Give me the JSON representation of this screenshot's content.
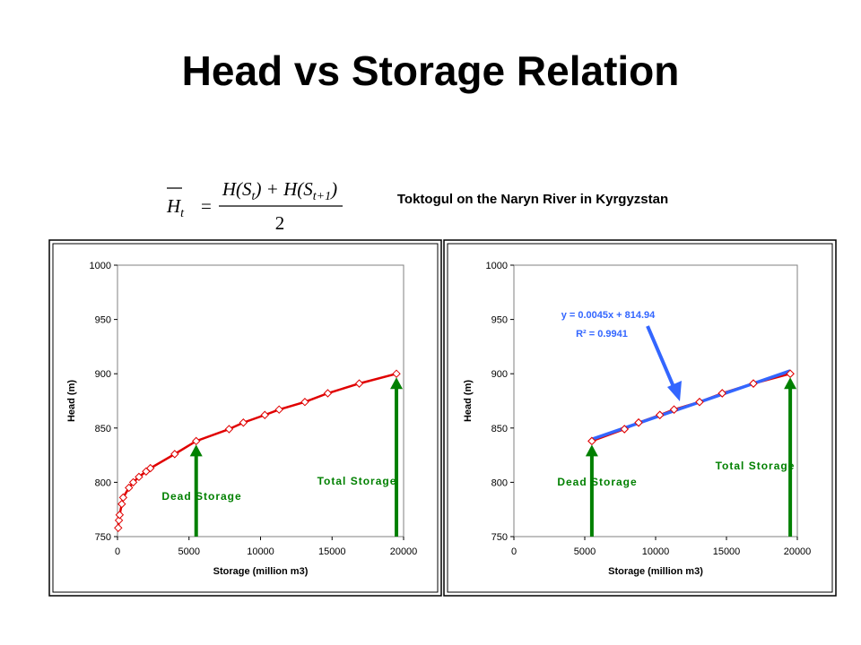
{
  "slide_title": "Head vs Storage Relation",
  "subtitle": "Toktogul on the Naryn River in Kyrgyzstan",
  "formula": {
    "lhs": "H",
    "lhs_sub": "t",
    "equals": "=",
    "numerator": [
      "H(S",
      "t",
      ") + H(S",
      "t+1",
      ")"
    ],
    "denominator": "2"
  },
  "chart_data": [
    {
      "type": "line",
      "x_label": "Storage (million m3)",
      "y_label": "Head (m)",
      "xlim": [
        0,
        20000
      ],
      "xticks": [
        0,
        5000,
        10000,
        15000,
        20000
      ],
      "ylim": [
        750,
        1000
      ],
      "yticks": [
        750,
        800,
        850,
        900,
        950,
        1000
      ],
      "series": [
        {
          "color": "#e00000",
          "x": [
            50,
            100,
            150,
            300,
            400,
            800,
            1100,
            1500,
            2000,
            2300,
            4000,
            5500,
            7800,
            8800,
            10300,
            11300,
            13100,
            14700,
            16900,
            19500
          ],
          "values": [
            758,
            765,
            770,
            780,
            786,
            795,
            800,
            805,
            810,
            813,
            826,
            838,
            849,
            855,
            862,
            867,
            874,
            882,
            891,
            900
          ]
        }
      ],
      "annotations": [
        {
          "text": "Dead Storage"
        },
        {
          "text": "Total Storage"
        }
      ]
    },
    {
      "type": "line",
      "x_label": "Storage (million m3)",
      "y_label": "Head (m)",
      "xlim": [
        0,
        20000
      ],
      "xticks": [
        0,
        5000,
        10000,
        15000,
        20000
      ],
      "ylim": [
        750,
        1000
      ],
      "yticks": [
        750,
        800,
        850,
        900,
        950,
        1000
      ],
      "series": [
        {
          "color": "#e00000",
          "x": [
            5500,
            7800,
            8800,
            10300,
            11300,
            13100,
            14700,
            16900,
            19500
          ],
          "values": [
            838,
            849,
            855,
            862,
            867,
            874,
            882,
            891,
            900
          ]
        },
        {
          "color": "#3366ff",
          "x": [
            5500,
            19500
          ],
          "values": [
            839.7,
            902.7
          ]
        }
      ],
      "annotations": [
        {
          "text": "y = 0.0045x + 814.94"
        },
        {
          "text": "R² = 0.9941"
        },
        {
          "text": "Dead Storage"
        },
        {
          "text": "Total Storage"
        }
      ]
    }
  ]
}
